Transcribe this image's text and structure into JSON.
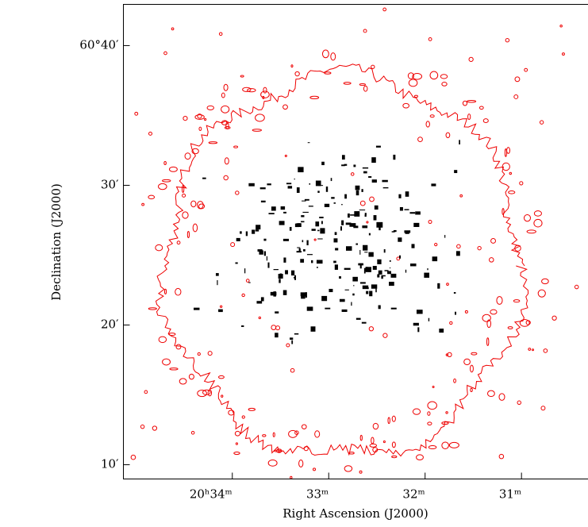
{
  "chart_data": {
    "type": "image",
    "xlabel": "Right Ascension (J2000)",
    "ylabel": "Declination (J2000)",
    "xlim": [
      35.13,
      30.31
    ],
    "ylim": [
      8.98,
      42.95
    ],
    "xticks": [
      {
        "value": 34,
        "label": "20ʰ34ᵐ"
      },
      {
        "value": 33,
        "label": "33ᵐ"
      },
      {
        "value": 32,
        "label": "32ᵐ"
      },
      {
        "value": 31,
        "label": "31ᵐ"
      }
    ],
    "yticks": [
      {
        "value": 40,
        "label": "60°40′"
      },
      {
        "value": 30,
        "label": "30′"
      },
      {
        "value": 20,
        "label": "20′"
      },
      {
        "value": 10,
        "label": "10′"
      }
    ]
  }
}
